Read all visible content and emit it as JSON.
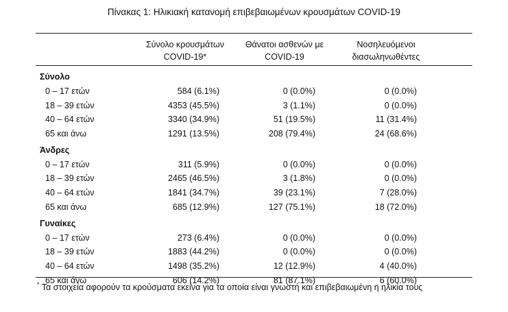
{
  "title": "Πίνακας 1: Ηλικιακή κατανομή επιβεβαιωμένων κρουσμάτων COVID-19",
  "headers": [
    {
      "line1": "Σύνολο κρουσμάτων",
      "line2": "COVID-19*"
    },
    {
      "line1": "Θάνατοι ασθενών με",
      "line2": "COVID-19"
    },
    {
      "line1": "Νοσηλευόμενοι",
      "line2": "διασωληνωθέντες"
    }
  ],
  "groups": [
    {
      "name": "Σύνολο",
      "rows": [
        {
          "age": "0 – 17 ετών",
          "cases": "584 (6.1%)",
          "deaths": "0 (0.0%)",
          "intubated": "0 (0.0%)"
        },
        {
          "age": "18 – 39 ετών",
          "cases": "4353 (45.5%)",
          "deaths": "3 (1.1%)",
          "intubated": "0 (0.0%)"
        },
        {
          "age": "40 – 64 ετών",
          "cases": "3340 (34.9%)",
          "deaths": "51 (19.5%)",
          "intubated": "11 (31.4%)"
        },
        {
          "age": "65 και άνω",
          "cases": "1291 (13.5%)",
          "deaths": "208 (79.4%)",
          "intubated": "24 (68.6%)"
        }
      ]
    },
    {
      "name": "Άνδρες",
      "rows": [
        {
          "age": "0 – 17 ετών",
          "cases": "311 (5.9%)",
          "deaths": "0 (0.0%)",
          "intubated": "0 (0.0%)"
        },
        {
          "age": "18 – 39 ετών",
          "cases": "2465 (46.5%)",
          "deaths": "3 (1.8%)",
          "intubated": "0 (0.0%)"
        },
        {
          "age": "40 – 64 ετών",
          "cases": "1841 (34.7%)",
          "deaths": "39 (23.1%)",
          "intubated": "7 (28.0%)"
        },
        {
          "age": "65 και άνω",
          "cases": "685 (12.9%)",
          "deaths": "127 (75.1%)",
          "intubated": "18 (72.0%)"
        }
      ]
    },
    {
      "name": "Γυναίκες",
      "rows": [
        {
          "age": "0 – 17 ετών",
          "cases": "273 (6.4%)",
          "deaths": "0 (0.0%)",
          "intubated": "0 (0.0%)"
        },
        {
          "age": "18 – 39 ετών",
          "cases": "1883 (44.2%)",
          "deaths": "0 (0.0%)",
          "intubated": "0 (0.0%)"
        },
        {
          "age": "40 – 64 ετών",
          "cases": "1498 (35.2%)",
          "deaths": "12 (12.9%)",
          "intubated": "4 (40.0%)"
        },
        {
          "age": "65 και άνω",
          "cases": "606 (14.2%)",
          "deaths": "81 (87.1%)",
          "intubated": "6 (60.0%)"
        }
      ]
    }
  ],
  "footnote": {
    "marker": "*",
    "text": "Τα στοιχεία αφορούν τα κρούσματα εκείνα για τα οποία είναι γνωστή και επιβεβαιωμένη η ηλικία τους"
  }
}
